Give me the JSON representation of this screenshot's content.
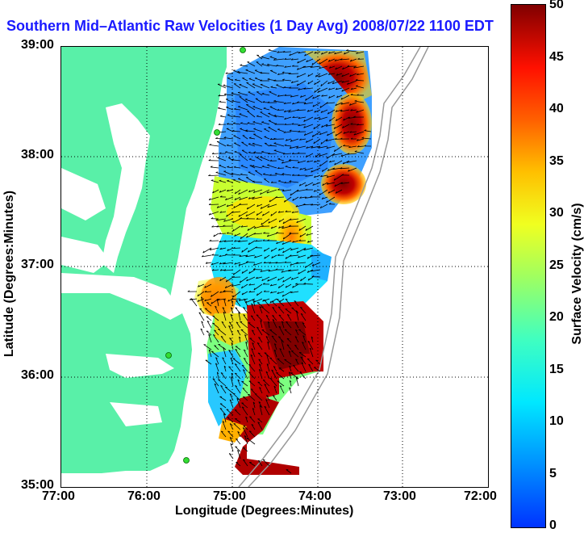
{
  "title": "Southern Mid–Atlantic Raw Velocities (1 Day Avg) 2008/07/22 1100 EDT",
  "x_axis": {
    "label": "Longitude (Degrees:Minutes)",
    "ticks": [
      "77:00",
      "76:00",
      "75:00",
      "74:00",
      "73:00",
      "72:00"
    ]
  },
  "y_axis": {
    "label": "Latitude (Degrees:Minutes)",
    "ticks": [
      "39:00",
      "38:00",
      "37:00",
      "36:00",
      "35:00"
    ]
  },
  "colorbar": {
    "label": "Surface Velocity (cm/s)",
    "ticks": [
      "50",
      "45",
      "40",
      "35",
      "30",
      "25",
      "20",
      "15",
      "10",
      "5",
      "0"
    ],
    "range": [
      0,
      50
    ],
    "colormap": "jet"
  },
  "colors": {
    "land": "#59f0a8",
    "title_text": "#1a1aff",
    "vector": "#000000",
    "station": "#33dd33"
  },
  "map": {
    "lon_range": [
      -77,
      -72
    ],
    "lat_range": [
      35,
      39
    ],
    "grid": "dotted",
    "features": [
      "coastline",
      "Chesapeake Bay",
      "Delmarva Peninsula",
      "Outer Banks",
      "bathymetry contours",
      "HF radar stations"
    ]
  }
}
